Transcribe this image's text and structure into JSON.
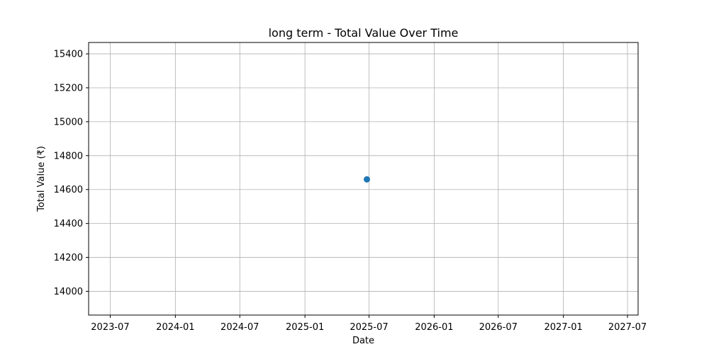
{
  "chart_data": {
    "type": "scatter",
    "title": "long term - Total Value Over Time",
    "xlabel": "Date",
    "ylabel": "Total Value (₹)",
    "x_ticks": [
      "2023-07",
      "2024-01",
      "2024-07",
      "2025-01",
      "2025-07",
      "2026-01",
      "2026-07",
      "2027-01",
      "2027-07"
    ],
    "y_ticks": [
      14000,
      14200,
      14400,
      14600,
      14800,
      15000,
      15200,
      15400
    ],
    "xlim": [
      "2023-05-01",
      "2027-07-31"
    ],
    "ylim": [
      13860,
      15467
    ],
    "grid": true,
    "series": [
      {
        "color": "#1f77b4",
        "points": [
          {
            "x": "2025-06-25",
            "y": 14660
          }
        ]
      }
    ]
  }
}
